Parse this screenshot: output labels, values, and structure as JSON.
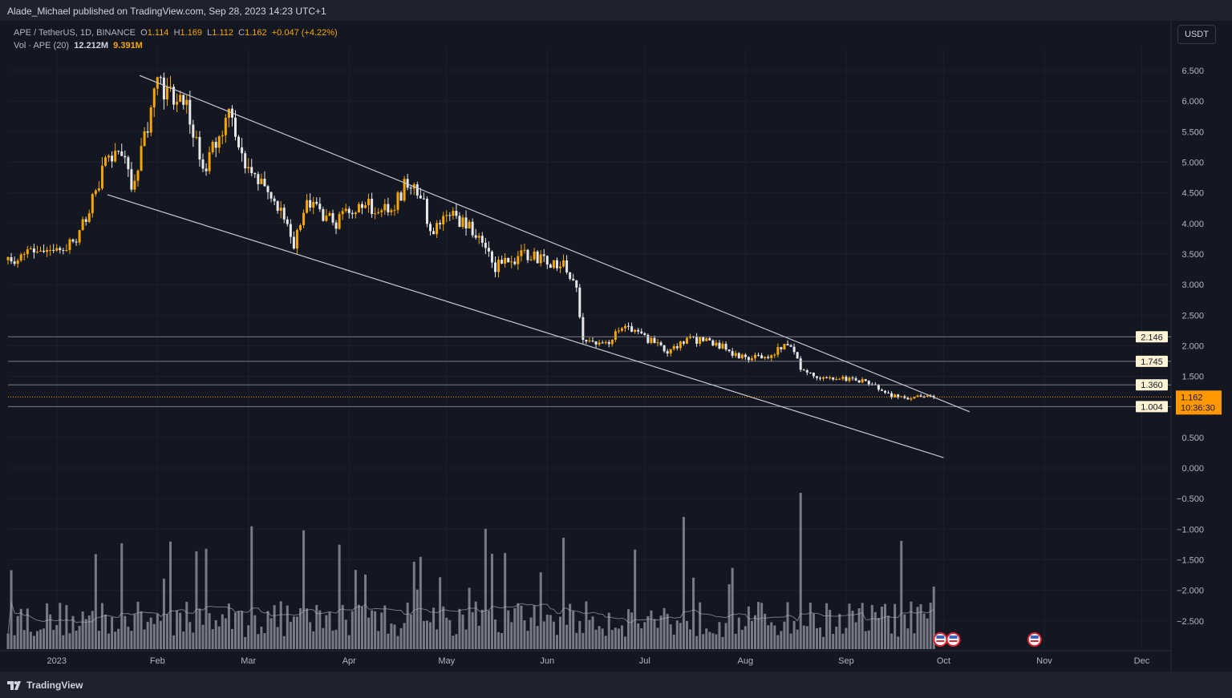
{
  "header": {
    "published": "Alade_Michael published on TradingView.com, Sep 28, 2023 14:23 UTC+1"
  },
  "legend": {
    "symbol": "APE / TetherUS, 1D, BINANCE",
    "open_label": "O",
    "open": "1.114",
    "high_label": "H",
    "high": "1.169",
    "low_label": "L",
    "low": "1.112",
    "close_label": "C",
    "close": "1.162",
    "change": "+0.047 (+4.22%)",
    "vol_label": "Vol · APE (20)",
    "vol": "12.212M",
    "vol_ma": "9.391M"
  },
  "currency_button": "USDT",
  "footer": {
    "logo_text": "TradingView"
  },
  "colors": {
    "up": "#f7a600",
    "down": "#e8e8ea",
    "bg": "#131722",
    "accent": "#ff9800"
  },
  "chart_data": {
    "type": "candlestick",
    "title": "APE / TetherUS, 1D, BINANCE",
    "ylim": [
      -2.9,
      6.6
    ],
    "y_ticks": [
      "6.500",
      "6.000",
      "5.500",
      "5.000",
      "4.500",
      "4.000",
      "3.500",
      "3.000",
      "2.500",
      "2.000",
      "1.500",
      "0.500",
      "0.000",
      "−0.500",
      "−1.000",
      "−1.500",
      "−2.000",
      "−2.500"
    ],
    "x_ticks": [
      {
        "label": "2023",
        "day": 15
      },
      {
        "label": "Feb",
        "day": 46
      },
      {
        "label": "Mar",
        "day": 74
      },
      {
        "label": "Apr",
        "day": 105
      },
      {
        "label": "May",
        "day": 135
      },
      {
        "label": "Jun",
        "day": 166
      },
      {
        "label": "Jul",
        "day": 196
      },
      {
        "label": "Aug",
        "day": 227
      },
      {
        "label": "Sep",
        "day": 258
      },
      {
        "label": "Oct",
        "day": 288
      },
      {
        "label": "Nov",
        "day": 319
      },
      {
        "label": "Dec",
        "day": 349
      }
    ],
    "start_date": "2022-12-17",
    "close_path": [
      [
        0,
        3.4
      ],
      [
        15,
        3.6
      ],
      [
        20,
        3.7
      ],
      [
        25,
        4.2
      ],
      [
        30,
        5.0
      ],
      [
        35,
        5.2
      ],
      [
        38,
        4.6
      ],
      [
        43,
        5.6
      ],
      [
        46,
        6.3
      ],
      [
        55,
        5.9
      ],
      [
        60,
        4.9
      ],
      [
        65,
        5.4
      ],
      [
        68,
        5.8
      ],
      [
        72,
        5.1
      ],
      [
        78,
        4.7
      ],
      [
        85,
        4.1
      ],
      [
        88,
        3.7
      ],
      [
        92,
        4.4
      ],
      [
        100,
        4.0
      ],
      [
        110,
        4.3
      ],
      [
        118,
        4.2
      ],
      [
        122,
        4.6
      ],
      [
        127,
        4.5
      ],
      [
        130,
        3.9
      ],
      [
        137,
        4.1
      ],
      [
        145,
        3.8
      ],
      [
        150,
        3.3
      ],
      [
        160,
        3.5
      ],
      [
        165,
        3.4
      ],
      [
        171,
        3.3
      ],
      [
        175,
        2.9
      ],
      [
        177,
        2.1
      ],
      [
        183,
        2.0
      ],
      [
        190,
        2.3
      ],
      [
        197,
        2.1
      ],
      [
        203,
        1.9
      ],
      [
        210,
        2.1
      ],
      [
        218,
        2.05
      ],
      [
        225,
        1.8
      ],
      [
        235,
        1.85
      ],
      [
        240,
        2.05
      ],
      [
        242,
        1.95
      ],
      [
        244,
        1.6
      ],
      [
        250,
        1.5
      ],
      [
        260,
        1.45
      ],
      [
        267,
        1.38
      ],
      [
        270,
        1.2
      ],
      [
        275,
        1.15
      ],
      [
        285,
        1.162
      ]
    ],
    "trendlines": [
      {
        "name": "channel-upper",
        "from": [
          40.5,
          6.42
        ],
        "to": [
          296,
          0.92
        ]
      },
      {
        "name": "channel-lower",
        "from": [
          30.6,
          4.47
        ],
        "to": [
          288,
          0.17
        ]
      }
    ],
    "levels": [
      {
        "value": 2.146,
        "label": "2.146"
      },
      {
        "value": 1.745,
        "label": "1.745"
      },
      {
        "value": 1.36,
        "label": "1.360"
      },
      {
        "value": 1.004,
        "label": "1.004"
      }
    ],
    "last_price": {
      "value": 1.162,
      "label": "1.162",
      "countdown": "10:36:30"
    },
    "events_days": [
      287,
      291,
      316
    ]
  }
}
